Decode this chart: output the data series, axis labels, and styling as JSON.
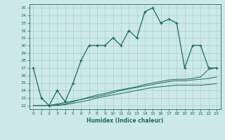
{
  "x": [
    0,
    1,
    2,
    3,
    4,
    5,
    6,
    7,
    8,
    9,
    10,
    11,
    12,
    13,
    14,
    15,
    16,
    17,
    18,
    19,
    20,
    21,
    22,
    23
  ],
  "y_main": [
    27,
    23,
    22,
    24,
    22.5,
    25,
    28,
    30,
    30,
    30,
    31,
    30,
    32,
    31,
    34.5,
    35,
    33,
    33.5,
    33,
    27,
    30,
    30,
    27,
    27
  ],
  "y_line1": [
    22,
    22,
    22,
    22.2,
    22.4,
    22.6,
    22.8,
    23.1,
    23.4,
    23.6,
    23.9,
    24.1,
    24.3,
    24.5,
    24.8,
    25.0,
    25.2,
    25.4,
    25.5,
    25.5,
    25.6,
    25.8,
    26.8,
    27.0
  ],
  "y_line2": [
    22,
    22,
    22,
    22.1,
    22.2,
    22.5,
    22.8,
    23.0,
    23.2,
    23.4,
    23.7,
    24.0,
    24.2,
    24.4,
    24.6,
    24.8,
    25.0,
    25.2,
    25.3,
    25.3,
    25.4,
    25.5,
    25.6,
    25.8
  ],
  "y_line3": [
    22,
    22,
    22,
    22.0,
    22.1,
    22.3,
    22.5,
    22.7,
    23.0,
    23.2,
    23.4,
    23.6,
    23.8,
    24.0,
    24.2,
    24.4,
    24.5,
    24.6,
    24.7,
    24.7,
    24.7,
    24.7,
    24.8,
    24.9
  ],
  "xlabel": "Humidex (Indice chaleur)",
  "xlim": [
    -0.5,
    23.5
  ],
  "ylim": [
    21.5,
    35.5
  ],
  "yticks": [
    22,
    23,
    24,
    25,
    26,
    27,
    28,
    29,
    30,
    31,
    32,
    33,
    34,
    35
  ],
  "xticks": [
    0,
    1,
    2,
    3,
    4,
    5,
    6,
    7,
    8,
    9,
    10,
    11,
    12,
    13,
    14,
    15,
    16,
    17,
    18,
    19,
    20,
    21,
    22,
    23
  ],
  "line_color": "#1a6b5a",
  "bg_color": "#cde8e8",
  "grid_color": "#aacfcf"
}
